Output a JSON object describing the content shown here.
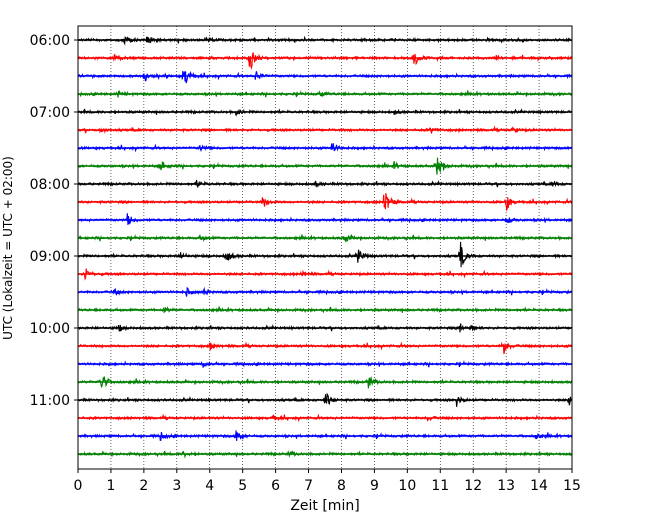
{
  "chart_data": {
    "type": "line",
    "title": "",
    "xlabel": "Zeit  [min]",
    "ylabel": "UTC (Lokalzeit = UTC + 02:00)",
    "xlim": [
      0,
      15
    ],
    "x_ticks": [
      "0",
      "1",
      "2",
      "3",
      "4",
      "5",
      "6",
      "7",
      "8",
      "9",
      "10",
      "11",
      "12",
      "13",
      "14",
      "15"
    ],
    "y_ticks": [
      "06:00",
      "07:00",
      "08:00",
      "09:00",
      "10:00",
      "11:00"
    ],
    "grid": "vertical dotted",
    "legend": "none",
    "trace_interval_min": 15,
    "trace_colors": [
      "#000000",
      "#ff0000",
      "#0000ff",
      "#008000"
    ],
    "series": [
      {
        "start": "06:00",
        "events": [
          [
            1.4,
            0.5
          ],
          [
            2.1,
            0.5
          ],
          [
            3.9,
            0.4
          ]
        ]
      },
      {
        "start": "06:15",
        "events": [
          [
            5.2,
            1.7
          ],
          [
            10.2,
            0.9
          ],
          [
            1.1,
            0.3
          ]
        ]
      },
      {
        "start": "06:30",
        "events": [
          [
            3.2,
            1.5
          ],
          [
            2.0,
            0.6
          ],
          [
            5.4,
            0.6
          ]
        ]
      },
      {
        "start": "06:45",
        "events": [
          [
            1.2,
            0.3
          ],
          [
            7.3,
            0.3
          ]
        ]
      },
      {
        "start": "07:00",
        "events": [
          [
            4.8,
            0.3
          ],
          [
            9.6,
            0.3
          ]
        ]
      },
      {
        "start": "07:15",
        "events": [
          [
            0.7,
            0.3
          ],
          [
            10.7,
            0.3
          ],
          [
            13.2,
            0.3
          ]
        ]
      },
      {
        "start": "07:30",
        "events": [
          [
            7.7,
            0.7
          ],
          [
            3.7,
            0.3
          ]
        ]
      },
      {
        "start": "07:45",
        "events": [
          [
            10.9,
            1.2
          ],
          [
            2.5,
            0.6
          ],
          [
            9.6,
            0.3
          ]
        ]
      },
      {
        "start": "08:00",
        "events": [
          [
            3.6,
            0.4
          ],
          [
            7.2,
            0.3
          ],
          [
            14.4,
            0.3
          ]
        ]
      },
      {
        "start": "08:15",
        "events": [
          [
            9.3,
            1.6
          ],
          [
            13.0,
            0.9
          ],
          [
            5.6,
            0.7
          ]
        ]
      },
      {
        "start": "08:30",
        "events": [
          [
            1.5,
            0.6
          ],
          [
            13.0,
            0.3
          ]
        ]
      },
      {
        "start": "08:45",
        "events": [
          [
            8.1,
            0.5
          ],
          [
            3.7,
            0.3
          ]
        ]
      },
      {
        "start": "09:00",
        "events": [
          [
            11.6,
            1.5
          ],
          [
            4.5,
            0.9
          ],
          [
            8.5,
            0.8
          ],
          [
            3.1,
            0.4
          ]
        ]
      },
      {
        "start": "09:15",
        "events": [
          [
            0.2,
            0.7
          ],
          [
            6.8,
            0.3
          ]
        ]
      },
      {
        "start": "09:30",
        "events": [
          [
            3.3,
            0.4
          ],
          [
            3.8,
            0.3
          ],
          [
            1.1,
            0.3
          ]
        ]
      },
      {
        "start": "09:45",
        "events": [
          [
            2.6,
            0.3
          ]
        ]
      },
      {
        "start": "10:00",
        "events": [
          [
            11.6,
            0.5
          ],
          [
            1.2,
            0.4
          ],
          [
            11.9,
            0.3
          ]
        ]
      },
      {
        "start": "10:15",
        "events": [
          [
            12.9,
            1.0
          ],
          [
            4.0,
            0.4
          ]
        ]
      },
      {
        "start": "10:30",
        "events": [
          [
            3.8,
            0.3
          ]
        ]
      },
      {
        "start": "10:45",
        "events": [
          [
            0.7,
            1.2
          ],
          [
            8.8,
            0.8
          ]
        ]
      },
      {
        "start": "11:00",
        "events": [
          [
            7.5,
            0.9
          ],
          [
            11.5,
            0.6
          ],
          [
            14.9,
            0.5
          ]
        ]
      },
      {
        "start": "11:15",
        "events": [
          [
            5.9,
            0.3
          ],
          [
            10.6,
            0.3
          ]
        ]
      },
      {
        "start": "11:30",
        "events": [
          [
            4.8,
            0.6
          ],
          [
            2.5,
            0.4
          ],
          [
            13.9,
            0.4
          ]
        ]
      },
      {
        "start": "11:45",
        "events": [
          [
            3.2,
            0.3
          ],
          [
            6.4,
            0.3
          ]
        ]
      }
    ]
  }
}
